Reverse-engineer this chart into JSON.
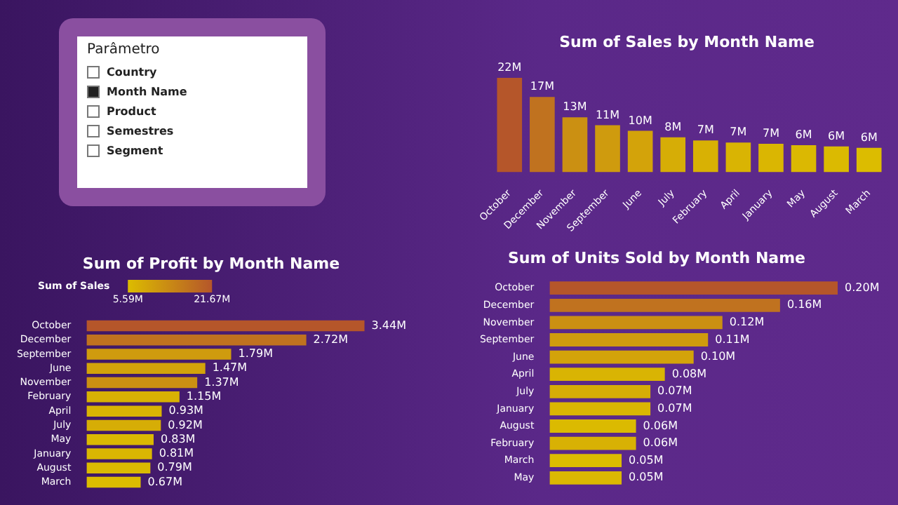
{
  "chart_data": [
    {
      "type": "other",
      "title": "Parâmetro",
      "annotations": [
        "Country",
        "Month Name",
        "Product",
        "Semestres",
        "Segment"
      ]
    },
    {
      "type": "bar",
      "title": "Sum of Sales by Month Name",
      "tick_labels": "x",
      "categories": [
        "October",
        "December",
        "November",
        "September",
        "June",
        "July",
        "February",
        "April",
        "January",
        "May",
        "August",
        "March"
      ],
      "values": [
        21.67,
        17.3,
        12.6,
        10.8,
        9.5,
        8.0,
        7.3,
        6.8,
        6.5,
        6.2,
        5.9,
        5.59
      ],
      "value_labels": [
        "22M",
        "17M",
        "13M",
        "11M",
        "10M",
        "8M",
        "7M",
        "7M",
        "7M",
        "6M",
        "6M",
        "6M"
      ],
      "colors": [
        "#b5562a",
        "#c0721f",
        "#cb9012",
        "#cf9b0e",
        "#d3a30a",
        "#d6ad06",
        "#d8b104",
        "#d9b403",
        "#dab602",
        "#dbb802",
        "#dbba01",
        "#dcbc00"
      ]
    },
    {
      "type": "bar",
      "orientation": "horizontal",
      "title": "Sum of Profit by Month Name",
      "tick_labels": "y",
      "categories": [
        "October",
        "December",
        "September",
        "June",
        "November",
        "February",
        "April",
        "July",
        "May",
        "January",
        "August",
        "March"
      ],
      "values": [
        3.44,
        2.72,
        1.79,
        1.47,
        1.37,
        1.15,
        0.93,
        0.92,
        0.83,
        0.81,
        0.79,
        0.67
      ],
      "value_labels": [
        "3.44M",
        "2.72M",
        "1.79M",
        "1.47M",
        "1.37M",
        "1.15M",
        "0.93M",
        "0.92M",
        "0.83M",
        "0.81M",
        "0.79M",
        "0.67M"
      ],
      "colors": [
        "#b5562a",
        "#c0721f",
        "#cf9b0e",
        "#d3a30a",
        "#cb9012",
        "#d8b104",
        "#d9b403",
        "#d6ad06",
        "#dbb802",
        "#dab602",
        "#dbba01",
        "#dcbc00"
      ],
      "clabel": "Sum of Sales",
      "clim": [
        5.59,
        21.67
      ],
      "cticks": [
        {
          "value": 5.59,
          "label": "5.59M"
        },
        {
          "value": 21.67,
          "label": "21.67M"
        }
      ]
    },
    {
      "type": "bar",
      "orientation": "horizontal",
      "title": "Sum of Units Sold by Month Name",
      "tick_labels": "y",
      "categories": [
        "October",
        "December",
        "November",
        "September",
        "June",
        "April",
        "July",
        "January",
        "August",
        "February",
        "March",
        "May"
      ],
      "values": [
        0.2,
        0.16,
        0.12,
        0.11,
        0.1,
        0.08,
        0.07,
        0.07,
        0.06,
        0.06,
        0.05,
        0.05
      ],
      "value_labels": [
        "0.20M",
        "0.16M",
        "0.12M",
        "0.11M",
        "0.10M",
        "0.08M",
        "0.07M",
        "0.07M",
        "0.06M",
        "0.06M",
        "0.05M",
        "0.05M"
      ],
      "colors": [
        "#b5562a",
        "#c0721f",
        "#cb9012",
        "#cf9b0e",
        "#d3a30a",
        "#d9b403",
        "#d6ad06",
        "#dab602",
        "#dbba01",
        "#d8b104",
        "#dcbc00",
        "#dbb802"
      ]
    }
  ]
}
